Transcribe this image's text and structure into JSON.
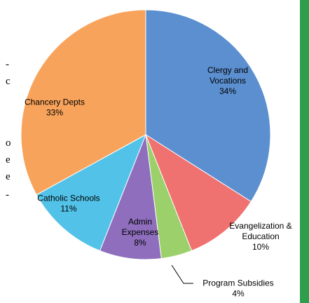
{
  "chart_data": {
    "type": "pie",
    "title": "",
    "slices": [
      {
        "label_lines": [
          "Clergy and",
          "Vocations"
        ],
        "percent_label": "34%",
        "value": 34,
        "color": "#5b8fd0"
      },
      {
        "label_lines": [
          "Evangelization &",
          "Education"
        ],
        "percent_label": "10%",
        "value": 10,
        "color": "#ef7271"
      },
      {
        "label_lines": [
          "Program Subsidies"
        ],
        "percent_label": "4%",
        "value": 4,
        "color": "#9bd06a"
      },
      {
        "label_lines": [
          "Admin",
          "Expenses"
        ],
        "percent_label": "8%",
        "value": 8,
        "color": "#8f6fbd"
      },
      {
        "label_lines": [
          "Catholic Schools"
        ],
        "percent_label": "11%",
        "value": 11,
        "color": "#52c2e8"
      },
      {
        "label_lines": [
          "Chancery Depts"
        ],
        "percent_label": "33%",
        "value": 33,
        "color": "#f8a35b"
      }
    ],
    "start_angle": "12 o'clock",
    "direction": "clockwise"
  },
  "side_text": [
    "-",
    "c",
    "o",
    "e",
    "e",
    "-"
  ]
}
